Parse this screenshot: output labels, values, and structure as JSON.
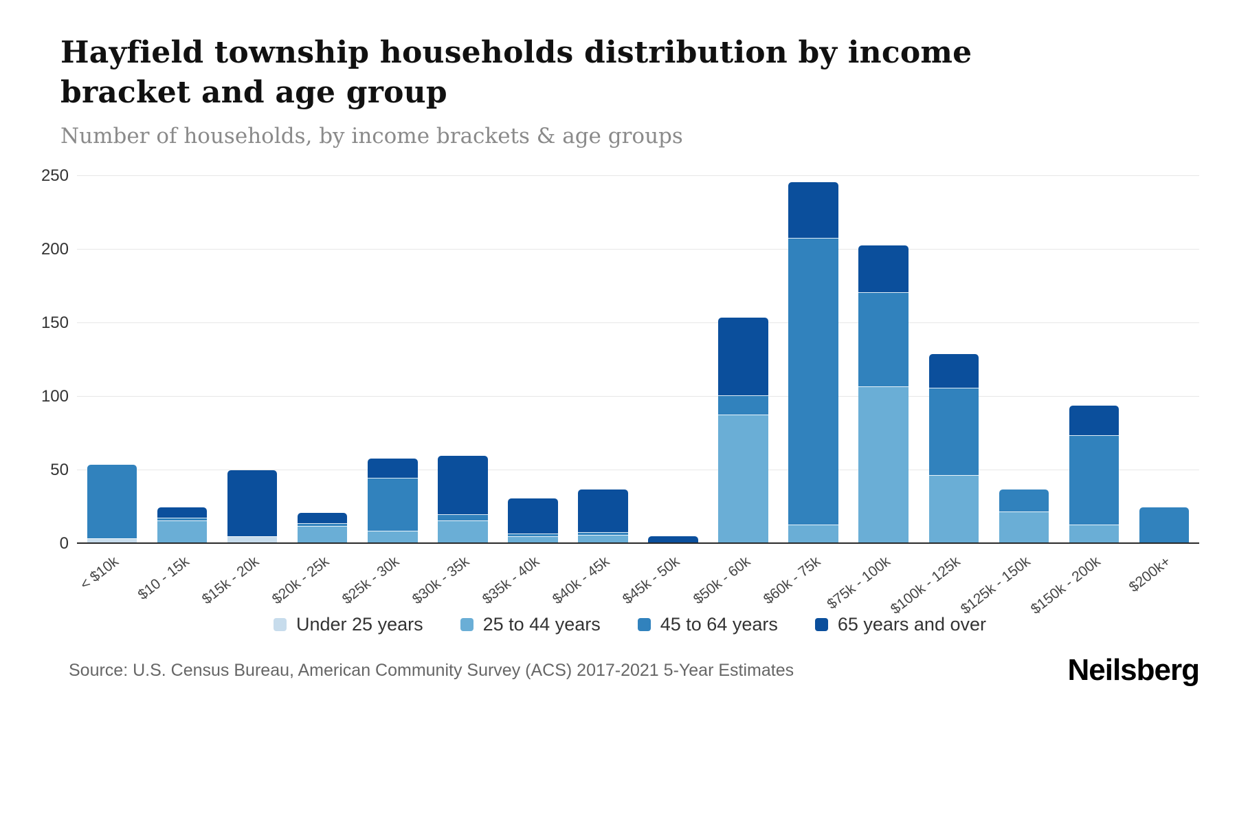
{
  "header": {
    "title": "Hayfield township households distribution by income bracket and age group",
    "subtitle": "Number of households, by income brackets & age groups"
  },
  "chart_data": {
    "type": "bar",
    "variant": "stacked",
    "title": "Hayfield township households distribution by income bracket and age group",
    "subtitle": "Number of households, by income brackets & age groups",
    "ylabel": "Number of households",
    "ylim": [
      0,
      250
    ],
    "y_ticks": [
      0,
      50,
      100,
      150,
      200,
      250
    ],
    "grid": "horizontal",
    "legend_position": "bottom",
    "categories": [
      "< $10k",
      "$10 - 15k",
      "$15k - 20k",
      "$20k - 25k",
      "$25k - 30k",
      "$30k - 35k",
      "$35k - 40k",
      "$40k - 45k",
      "$45k - 50k",
      "$50k - 60k",
      "$60k - 75k",
      "$75k - 100k",
      "$100k - 125k",
      "$125k - 150k",
      "$150k - 200k",
      "$200k+"
    ],
    "series": [
      {
        "name": "Under 25 years",
        "color": "#c7dcec",
        "values": [
          4,
          0,
          5,
          0,
          0,
          0,
          0,
          0,
          0,
          0,
          0,
          0,
          0,
          0,
          0,
          0
        ]
      },
      {
        "name": "25 to 44 years",
        "color": "#6aaed6",
        "values": [
          0,
          16,
          0,
          12,
          9,
          16,
          5,
          6,
          0,
          88,
          13,
          107,
          47,
          22,
          13,
          0
        ]
      },
      {
        "name": "45 to 64 years",
        "color": "#3182bd",
        "values": [
          50,
          2,
          0,
          2,
          36,
          4,
          2,
          2,
          1,
          13,
          195,
          64,
          59,
          15,
          61,
          25
        ]
      },
      {
        "name": "65 years and over",
        "color": "#0b4f9c",
        "values": [
          0,
          7,
          45,
          7,
          13,
          40,
          24,
          29,
          4,
          53,
          38,
          32,
          23,
          0,
          20,
          0
        ]
      }
    ]
  },
  "footer": {
    "source": "Source: U.S. Census Bureau, American Community Survey (ACS) 2017-2021 5-Year Estimates",
    "brand": "Neilsberg"
  }
}
